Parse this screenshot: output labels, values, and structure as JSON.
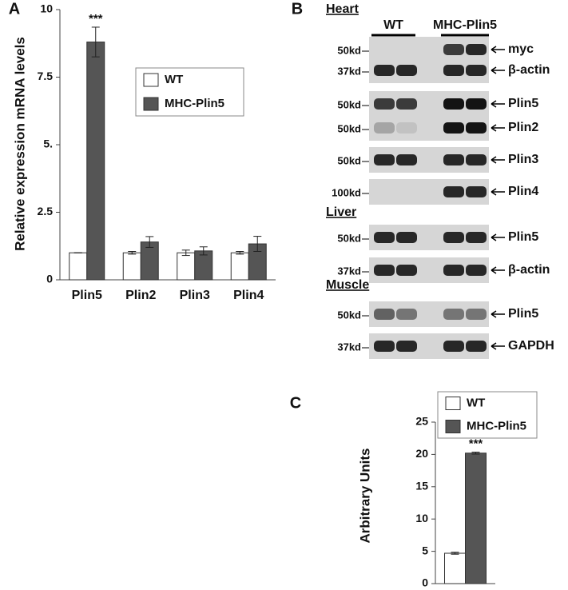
{
  "chart_data": [
    {
      "type": "bar",
      "panel_label": "A",
      "ylabel": "Relative expression mRNA levels",
      "categories": [
        "Plin5",
        "Plin2",
        "Plin3",
        "Plin4"
      ],
      "series": [
        {
          "name": "WT",
          "color": "#ffffff",
          "values": [
            1,
            1,
            1,
            1
          ],
          "errors": [
            0,
            0.05,
            0.1,
            0.05
          ]
        },
        {
          "name": "MHC-Plin5",
          "color": "#555555",
          "values": [
            8.8,
            1.4,
            1.07,
            1.33
          ],
          "errors": [
            0.55,
            0.2,
            0.15,
            0.28
          ]
        }
      ],
      "ylim": [
        0,
        10
      ],
      "yticks": [
        0,
        2.5,
        {
          "value": 5,
          "label": "5."
        },
        7.5,
        10
      ],
      "annotations": [
        "***"
      ]
    },
    {
      "type": "bar",
      "panel_label": "C",
      "ylabel": "Arbitrary Units",
      "categories": [
        null
      ],
      "series": [
        {
          "name": "WT",
          "color": "#ffffff",
          "values": [
            4.7
          ],
          "errors": [
            0.15
          ]
        },
        {
          "name": "MHC-Plin5",
          "color": "#555555",
          "values": [
            20.2
          ],
          "errors": [
            0.15
          ]
        }
      ],
      "ylim": [
        0,
        25
      ],
      "yticks": [
        0,
        5,
        10,
        15,
        20,
        25
      ],
      "annotations": [
        "***"
      ]
    }
  ],
  "blot": {
    "panel_label": "B",
    "groups": [
      "WT",
      "MHC-Plin5"
    ],
    "sections": [
      {
        "name": "Heart",
        "rows": [
          {
            "marker": "50kd",
            "label": "myc"
          },
          {
            "marker": "37kd",
            "label": "β-actin"
          },
          {
            "marker": "50kd",
            "label": "Plin5"
          },
          {
            "marker": "50kd",
            "label": "Plin2"
          },
          {
            "marker": "50kd",
            "label": "Plin3"
          },
          {
            "marker": "100kd",
            "label": "Plin4"
          }
        ]
      },
      {
        "name": "Liver",
        "rows": [
          {
            "marker": "50kd",
            "label": "Plin5"
          },
          {
            "marker": "37kd",
            "label": "β-actin"
          }
        ]
      },
      {
        "name": "Muscle",
        "rows": [
          {
            "marker": "50kd",
            "label": "Plin5"
          },
          {
            "marker": "37kd",
            "label": "GAPDH"
          }
        ]
      }
    ]
  }
}
